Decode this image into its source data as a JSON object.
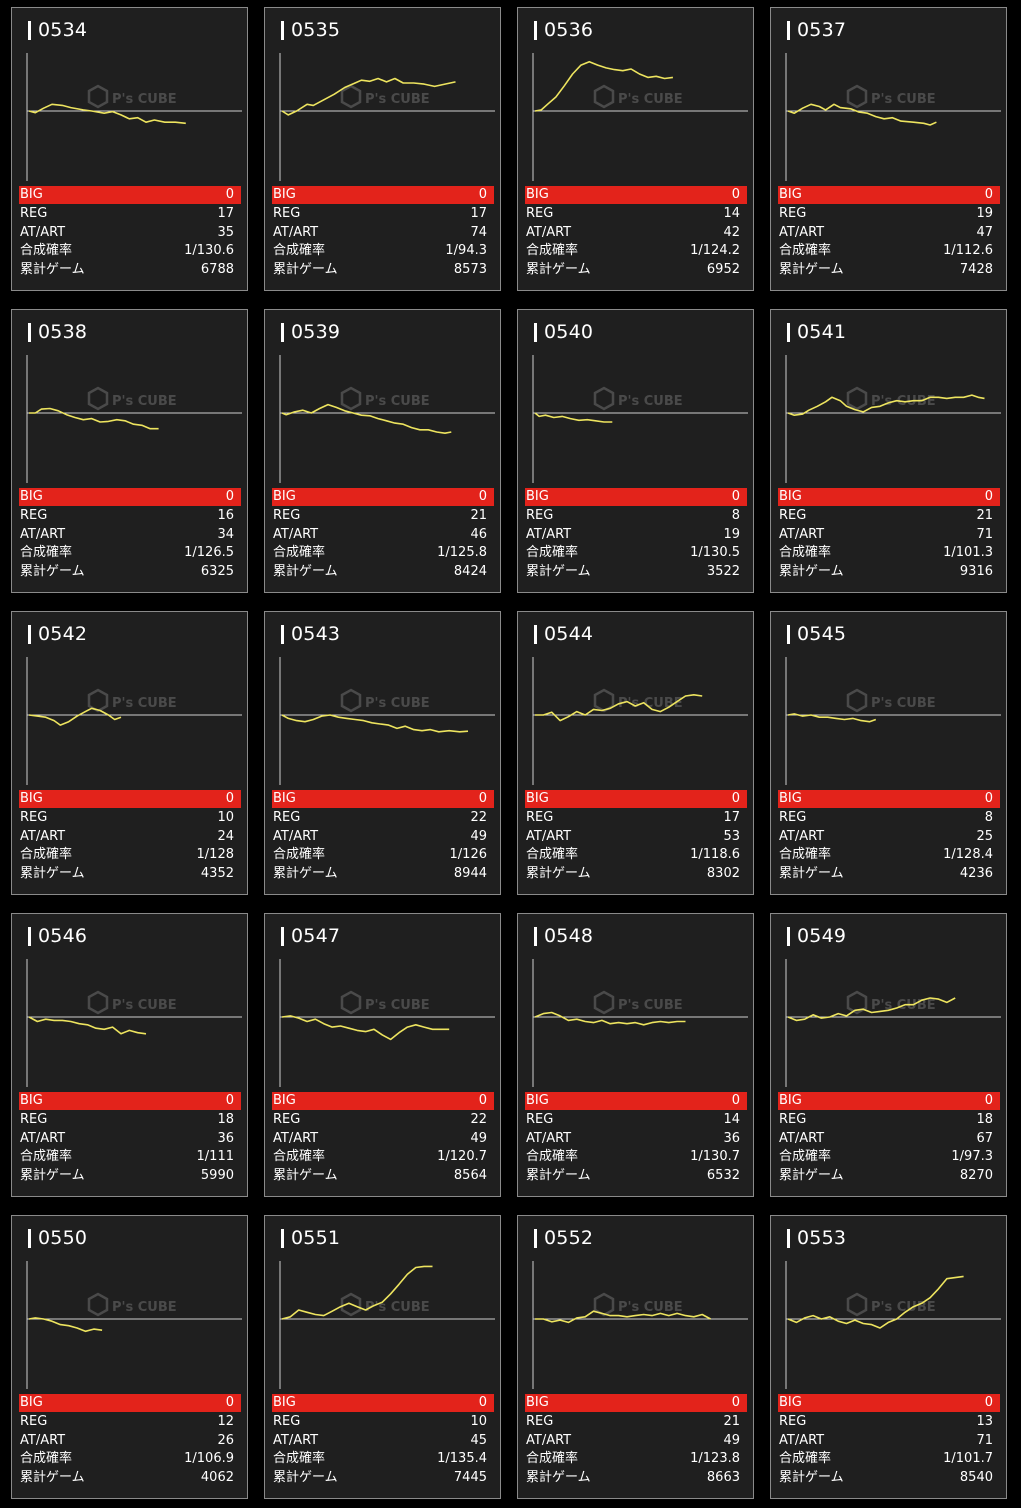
{
  "colors": {
    "card_bg": "#1f1f1f",
    "border": "#8a8a8a",
    "big_bg": "#e3231b",
    "trend_line": "#ede45f",
    "axis": "#cfcfcf"
  },
  "watermark": {
    "brand": "P's CUBE"
  },
  "labels": {
    "big": "BIG",
    "reg": "REG",
    "at_art": "AT/ART",
    "prob": "合成確率",
    "games": "累計ゲーム"
  },
  "machines": [
    {
      "id": "0534",
      "big": "0",
      "reg": "17",
      "at_art": "35",
      "prob": "1/130.6",
      "games": "6788"
    },
    {
      "id": "0535",
      "big": "0",
      "reg": "17",
      "at_art": "74",
      "prob": "1/94.3",
      "games": "8573"
    },
    {
      "id": "0536",
      "big": "0",
      "reg": "14",
      "at_art": "42",
      "prob": "1/124.2",
      "games": "6952"
    },
    {
      "id": "0537",
      "big": "0",
      "reg": "19",
      "at_art": "47",
      "prob": "1/112.6",
      "games": "7428"
    },
    {
      "id": "0538",
      "big": "0",
      "reg": "16",
      "at_art": "34",
      "prob": "1/126.5",
      "games": "6325"
    },
    {
      "id": "0539",
      "big": "0",
      "reg": "21",
      "at_art": "46",
      "prob": "1/125.8",
      "games": "8424"
    },
    {
      "id": "0540",
      "big": "0",
      "reg": "8",
      "at_art": "19",
      "prob": "1/130.5",
      "games": "3522"
    },
    {
      "id": "0541",
      "big": "0",
      "reg": "21",
      "at_art": "71",
      "prob": "1/101.3",
      "games": "9316"
    },
    {
      "id": "0542",
      "big": "0",
      "reg": "10",
      "at_art": "24",
      "prob": "1/128",
      "games": "4352"
    },
    {
      "id": "0543",
      "big": "0",
      "reg": "22",
      "at_art": "49",
      "prob": "1/126",
      "games": "8944"
    },
    {
      "id": "0544",
      "big": "0",
      "reg": "17",
      "at_art": "53",
      "prob": "1/118.6",
      "games": "8302"
    },
    {
      "id": "0545",
      "big": "0",
      "reg": "8",
      "at_art": "25",
      "prob": "1/128.4",
      "games": "4236"
    },
    {
      "id": "0546",
      "big": "0",
      "reg": "18",
      "at_art": "36",
      "prob": "1/111",
      "games": "5990"
    },
    {
      "id": "0547",
      "big": "0",
      "reg": "22",
      "at_art": "49",
      "prob": "1/120.7",
      "games": "8564"
    },
    {
      "id": "0548",
      "big": "0",
      "reg": "14",
      "at_art": "36",
      "prob": "1/130.7",
      "games": "6532"
    },
    {
      "id": "0549",
      "big": "0",
      "reg": "18",
      "at_art": "67",
      "prob": "1/97.3",
      "games": "8270"
    },
    {
      "id": "0550",
      "big": "0",
      "reg": "12",
      "at_art": "26",
      "prob": "1/106.9",
      "games": "4062"
    },
    {
      "id": "0551",
      "big": "0",
      "reg": "10",
      "at_art": "45",
      "prob": "1/135.4",
      "games": "7445"
    },
    {
      "id": "0552",
      "big": "0",
      "reg": "21",
      "at_art": "49",
      "prob": "1/123.8",
      "games": "8663"
    },
    {
      "id": "0553",
      "big": "0",
      "reg": "13",
      "at_art": "71",
      "prob": "1/101.7",
      "games": "8540"
    }
  ]
}
